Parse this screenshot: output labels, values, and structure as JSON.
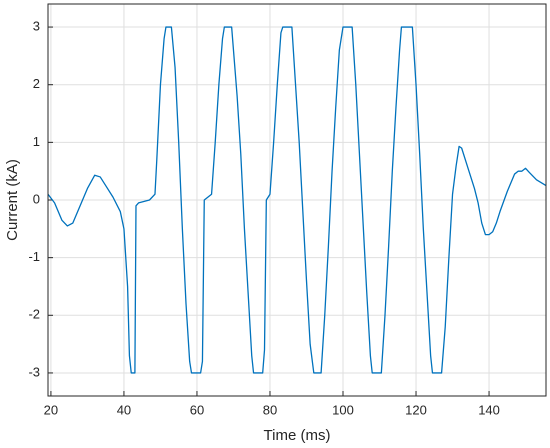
{
  "chart_data": {
    "type": "line",
    "xlabel": "Time (ms)",
    "ylabel": "Current (kA)",
    "x": [
      19.2,
      21,
      23,
      24.5,
      26,
      28,
      30,
      32,
      33.5,
      35,
      37,
      39,
      40,
      41,
      41.5,
      42,
      43,
      43.3,
      44,
      47,
      48.5,
      49,
      50,
      51,
      51.5,
      53,
      54,
      55,
      56,
      57,
      58,
      58.5,
      61,
      61.5,
      62,
      63,
      64,
      65,
      66,
      67,
      67.5,
      69.5,
      71,
      72,
      73,
      74,
      75,
      75.5,
      78,
      78.5,
      79,
      80,
      81,
      82,
      83,
      83.5,
      86,
      87,
      88,
      89,
      90,
      91,
      92,
      94,
      95,
      96,
      97,
      98,
      99,
      100,
      102.5,
      103.5,
      104.5,
      105.5,
      106.5,
      107.5,
      108,
      110.5,
      111.5,
      112.5,
      113.5,
      114.5,
      115.5,
      116,
      119,
      120,
      121,
      122,
      123,
      124,
      124.5,
      127,
      128,
      129,
      130,
      131,
      131.8,
      132.5,
      134,
      136,
      137,
      138,
      139,
      140,
      141,
      142,
      143,
      145,
      147,
      148,
      149,
      150,
      151,
      153,
      155.6
    ],
    "series": [
      {
        "color": "#0072bd",
        "values": [
          0.1,
          -0.05,
          -0.35,
          -0.45,
          -0.4,
          -0.1,
          0.2,
          0.43,
          0.4,
          0.25,
          0.05,
          -0.2,
          -0.5,
          -1.5,
          -2.7,
          -3,
          -3,
          -0.1,
          -0.05,
          0,
          0.1,
          0.7,
          2,
          2.8,
          3,
          3,
          2.3,
          1,
          -0.5,
          -1.8,
          -2.8,
          -3,
          -3,
          -2.8,
          0,
          0.05,
          0.1,
          1,
          2,
          2.8,
          3,
          3,
          1.8,
          0.8,
          -0.5,
          -1.6,
          -2.7,
          -3,
          -3,
          -2.6,
          0,
          0.1,
          1,
          2,
          2.9,
          3,
          3,
          2,
          1,
          -0.2,
          -1.4,
          -2.5,
          -3,
          -3,
          -2,
          -0.8,
          0.5,
          1.6,
          2.6,
          3,
          3,
          2,
          0.8,
          -0.4,
          -1.6,
          -2.7,
          -3,
          -3,
          -2,
          -0.8,
          0.5,
          1.6,
          2.6,
          3,
          3,
          2,
          0.8,
          -0.5,
          -1.6,
          -2.7,
          -3,
          -3,
          -2.2,
          -1,
          0.1,
          0.6,
          0.93,
          0.9,
          0.6,
          0.2,
          -0.05,
          -0.4,
          -0.6,
          -0.6,
          -0.55,
          -0.4,
          -0.2,
          0.15,
          0.45,
          0.5,
          0.5,
          0.55,
          0.48,
          0.35,
          0.25
        ]
      }
    ],
    "xlim": [
      19.2,
      155.6
    ],
    "ylim": [
      -3.4,
      3.4
    ],
    "xticks": [
      20,
      40,
      60,
      80,
      100,
      120,
      140
    ],
    "yticks": [
      -3,
      -2,
      -1,
      0,
      1,
      2,
      3
    ],
    "grid": true
  }
}
